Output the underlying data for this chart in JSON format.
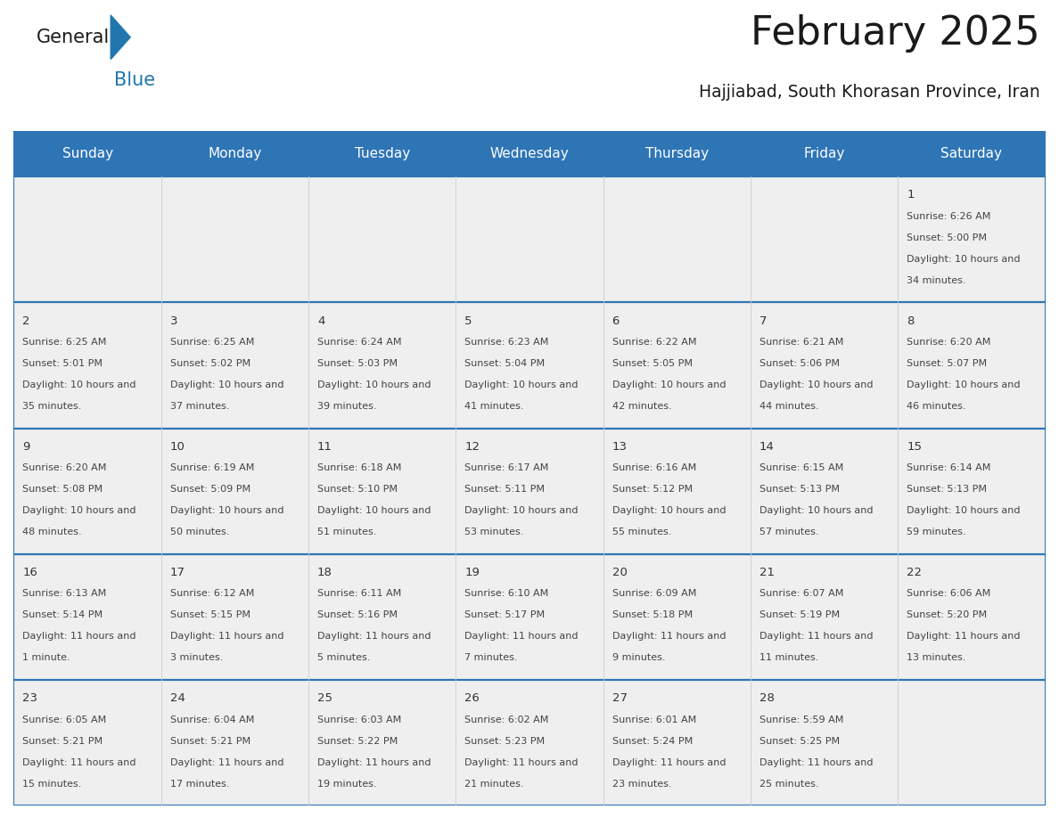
{
  "title": "February 2025",
  "subtitle": "Hajjiabad, South Khorasan Province, Iran",
  "header_bg": "#2E75B6",
  "header_text": "#FFFFFF",
  "cell_bg": "#EFEFEF",
  "border_color": "#2E75B6",
  "row_line_color": "#2E75B6",
  "col_line_color": "#CCCCCC",
  "day_num_color": "#333333",
  "text_color": "#444444",
  "logo_black": "#1A1A1A",
  "logo_blue": "#2176AE",
  "title_color": "#1A1A1A",
  "subtitle_color": "#1A1A1A",
  "day_headers": [
    "Sunday",
    "Monday",
    "Tuesday",
    "Wednesday",
    "Thursday",
    "Friday",
    "Saturday"
  ],
  "days": [
    {
      "day": 1,
      "col": 6,
      "row": 0,
      "sunrise": "6:26 AM",
      "sunset": "5:00 PM",
      "dl1": "Daylight: 10 hours and",
      "dl2": "34 minutes."
    },
    {
      "day": 2,
      "col": 0,
      "row": 1,
      "sunrise": "6:25 AM",
      "sunset": "5:01 PM",
      "dl1": "Daylight: 10 hours and",
      "dl2": "35 minutes."
    },
    {
      "day": 3,
      "col": 1,
      "row": 1,
      "sunrise": "6:25 AM",
      "sunset": "5:02 PM",
      "dl1": "Daylight: 10 hours and",
      "dl2": "37 minutes."
    },
    {
      "day": 4,
      "col": 2,
      "row": 1,
      "sunrise": "6:24 AM",
      "sunset": "5:03 PM",
      "dl1": "Daylight: 10 hours and",
      "dl2": "39 minutes."
    },
    {
      "day": 5,
      "col": 3,
      "row": 1,
      "sunrise": "6:23 AM",
      "sunset": "5:04 PM",
      "dl1": "Daylight: 10 hours and",
      "dl2": "41 minutes."
    },
    {
      "day": 6,
      "col": 4,
      "row": 1,
      "sunrise": "6:22 AM",
      "sunset": "5:05 PM",
      "dl1": "Daylight: 10 hours and",
      "dl2": "42 minutes."
    },
    {
      "day": 7,
      "col": 5,
      "row": 1,
      "sunrise": "6:21 AM",
      "sunset": "5:06 PM",
      "dl1": "Daylight: 10 hours and",
      "dl2": "44 minutes."
    },
    {
      "day": 8,
      "col": 6,
      "row": 1,
      "sunrise": "6:20 AM",
      "sunset": "5:07 PM",
      "dl1": "Daylight: 10 hours and",
      "dl2": "46 minutes."
    },
    {
      "day": 9,
      "col": 0,
      "row": 2,
      "sunrise": "6:20 AM",
      "sunset": "5:08 PM",
      "dl1": "Daylight: 10 hours and",
      "dl2": "48 minutes."
    },
    {
      "day": 10,
      "col": 1,
      "row": 2,
      "sunrise": "6:19 AM",
      "sunset": "5:09 PM",
      "dl1": "Daylight: 10 hours and",
      "dl2": "50 minutes."
    },
    {
      "day": 11,
      "col": 2,
      "row": 2,
      "sunrise": "6:18 AM",
      "sunset": "5:10 PM",
      "dl1": "Daylight: 10 hours and",
      "dl2": "51 minutes."
    },
    {
      "day": 12,
      "col": 3,
      "row": 2,
      "sunrise": "6:17 AM",
      "sunset": "5:11 PM",
      "dl1": "Daylight: 10 hours and",
      "dl2": "53 minutes."
    },
    {
      "day": 13,
      "col": 4,
      "row": 2,
      "sunrise": "6:16 AM",
      "sunset": "5:12 PM",
      "dl1": "Daylight: 10 hours and",
      "dl2": "55 minutes."
    },
    {
      "day": 14,
      "col": 5,
      "row": 2,
      "sunrise": "6:15 AM",
      "sunset": "5:13 PM",
      "dl1": "Daylight: 10 hours and",
      "dl2": "57 minutes."
    },
    {
      "day": 15,
      "col": 6,
      "row": 2,
      "sunrise": "6:14 AM",
      "sunset": "5:13 PM",
      "dl1": "Daylight: 10 hours and",
      "dl2": "59 minutes."
    },
    {
      "day": 16,
      "col": 0,
      "row": 3,
      "sunrise": "6:13 AM",
      "sunset": "5:14 PM",
      "dl1": "Daylight: 11 hours and",
      "dl2": "1 minute."
    },
    {
      "day": 17,
      "col": 1,
      "row": 3,
      "sunrise": "6:12 AM",
      "sunset": "5:15 PM",
      "dl1": "Daylight: 11 hours and",
      "dl2": "3 minutes."
    },
    {
      "day": 18,
      "col": 2,
      "row": 3,
      "sunrise": "6:11 AM",
      "sunset": "5:16 PM",
      "dl1": "Daylight: 11 hours and",
      "dl2": "5 minutes."
    },
    {
      "day": 19,
      "col": 3,
      "row": 3,
      "sunrise": "6:10 AM",
      "sunset": "5:17 PM",
      "dl1": "Daylight: 11 hours and",
      "dl2": "7 minutes."
    },
    {
      "day": 20,
      "col": 4,
      "row": 3,
      "sunrise": "6:09 AM",
      "sunset": "5:18 PM",
      "dl1": "Daylight: 11 hours and",
      "dl2": "9 minutes."
    },
    {
      "day": 21,
      "col": 5,
      "row": 3,
      "sunrise": "6:07 AM",
      "sunset": "5:19 PM",
      "dl1": "Daylight: 11 hours and",
      "dl2": "11 minutes."
    },
    {
      "day": 22,
      "col": 6,
      "row": 3,
      "sunrise": "6:06 AM",
      "sunset": "5:20 PM",
      "dl1": "Daylight: 11 hours and",
      "dl2": "13 minutes."
    },
    {
      "day": 23,
      "col": 0,
      "row": 4,
      "sunrise": "6:05 AM",
      "sunset": "5:21 PM",
      "dl1": "Daylight: 11 hours and",
      "dl2": "15 minutes."
    },
    {
      "day": 24,
      "col": 1,
      "row": 4,
      "sunrise": "6:04 AM",
      "sunset": "5:21 PM",
      "dl1": "Daylight: 11 hours and",
      "dl2": "17 minutes."
    },
    {
      "day": 25,
      "col": 2,
      "row": 4,
      "sunrise": "6:03 AM",
      "sunset": "5:22 PM",
      "dl1": "Daylight: 11 hours and",
      "dl2": "19 minutes."
    },
    {
      "day": 26,
      "col": 3,
      "row": 4,
      "sunrise": "6:02 AM",
      "sunset": "5:23 PM",
      "dl1": "Daylight: 11 hours and",
      "dl2": "21 minutes."
    },
    {
      "day": 27,
      "col": 4,
      "row": 4,
      "sunrise": "6:01 AM",
      "sunset": "5:24 PM",
      "dl1": "Daylight: 11 hours and",
      "dl2": "23 minutes."
    },
    {
      "day": 28,
      "col": 5,
      "row": 4,
      "sunrise": "5:59 AM",
      "sunset": "5:25 PM",
      "dl1": "Daylight: 11 hours and",
      "dl2": "25 minutes."
    }
  ]
}
